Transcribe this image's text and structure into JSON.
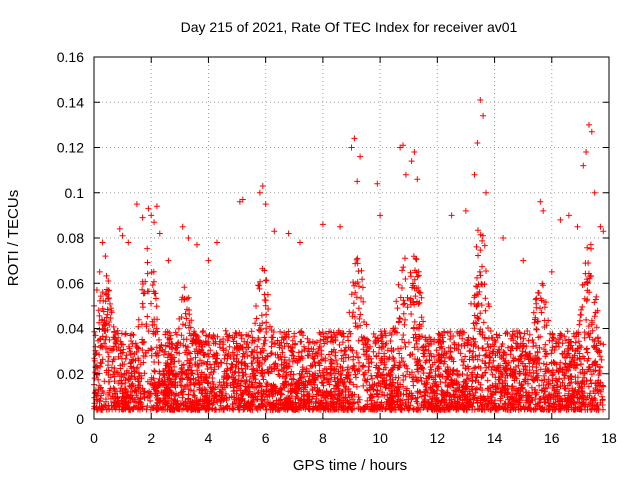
{
  "chart_data": {
    "type": "scatter",
    "title": "Day 215 of 2021, Rate Of TEC Index for receiver av01",
    "xlabel": "GPS time / hours",
    "ylabel": "ROTI / TECUs",
    "xlim": [
      0,
      18
    ],
    "ylim": [
      0,
      0.16
    ],
    "xticks": [
      "0",
      "2",
      "4",
      "6",
      "8",
      "10",
      "12",
      "14",
      "16",
      "18"
    ],
    "yticks": [
      "0",
      "0.02",
      "0.04",
      "0.06",
      "0.08",
      "0.1",
      "0.12",
      "0.14",
      "0.16"
    ],
    "grid": true,
    "marker": "plus",
    "color": "#ff0000",
    "x_range_of_points": [
      0,
      17.8
    ],
    "series": [
      {
        "color": "#ff0000",
        "points": [
          [
            0.0,
            0.05
          ],
          [
            0.1,
            0.057
          ],
          [
            0.2,
            0.065
          ],
          [
            0.3,
            0.078
          ],
          [
            0.4,
            0.072
          ],
          [
            0.5,
            0.061
          ],
          [
            0.9,
            0.084
          ],
          [
            1.0,
            0.081
          ],
          [
            1.2,
            0.078
          ],
          [
            1.5,
            0.095
          ],
          [
            1.7,
            0.089
          ],
          [
            1.9,
            0.093
          ],
          [
            2.0,
            0.09
          ],
          [
            2.1,
            0.087
          ],
          [
            2.2,
            0.094
          ],
          [
            2.3,
            0.082
          ],
          [
            2.6,
            0.07
          ],
          [
            3.1,
            0.085
          ],
          [
            3.3,
            0.08
          ],
          [
            3.6,
            0.077
          ],
          [
            4.0,
            0.07
          ],
          [
            4.3,
            0.078
          ],
          [
            5.1,
            0.096
          ],
          [
            5.2,
            0.097
          ],
          [
            5.8,
            0.1
          ],
          [
            5.9,
            0.103
          ],
          [
            6.0,
            0.095
          ],
          [
            6.3,
            0.083
          ],
          [
            6.8,
            0.082
          ],
          [
            7.2,
            0.078
          ],
          [
            8.0,
            0.086
          ],
          [
            8.6,
            0.085
          ],
          [
            9.0,
            0.12
          ],
          [
            9.1,
            0.124
          ],
          [
            9.2,
            0.105
          ],
          [
            9.3,
            0.116
          ],
          [
            9.9,
            0.104
          ],
          [
            10.0,
            0.09
          ],
          [
            10.7,
            0.12
          ],
          [
            10.8,
            0.121
          ],
          [
            10.9,
            0.108
          ],
          [
            11.1,
            0.114
          ],
          [
            11.2,
            0.118
          ],
          [
            11.3,
            0.106
          ],
          [
            12.5,
            0.09
          ],
          [
            13.0,
            0.092
          ],
          [
            13.3,
            0.108
          ],
          [
            13.4,
            0.122
          ],
          [
            13.5,
            0.141
          ],
          [
            13.6,
            0.134
          ],
          [
            13.7,
            0.1
          ],
          [
            14.3,
            0.08
          ],
          [
            15.0,
            0.07
          ],
          [
            15.6,
            0.096
          ],
          [
            15.7,
            0.092
          ],
          [
            16.0,
            0.065
          ],
          [
            16.3,
            0.088
          ],
          [
            16.6,
            0.09
          ],
          [
            16.9,
            0.085
          ],
          [
            17.1,
            0.112
          ],
          [
            17.2,
            0.118
          ],
          [
            17.3,
            0.13
          ],
          [
            17.4,
            0.127
          ],
          [
            17.5,
            0.1
          ],
          [
            17.7,
            0.085
          ],
          [
            17.8,
            0.083
          ]
        ]
      }
    ]
  }
}
